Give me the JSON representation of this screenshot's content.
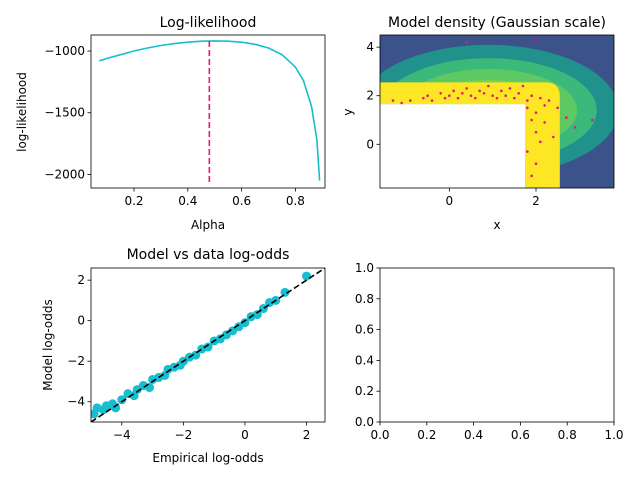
{
  "chart_data": [
    {
      "type": "line",
      "title": "Log-likelihood",
      "xlabel": "Alpha",
      "ylabel": "log-likelihood",
      "xlim": [
        0.04,
        0.91
      ],
      "ylim": [
        -2110,
        -870
      ],
      "xticks": [
        0.2,
        0.4,
        0.6,
        0.8
      ],
      "yticks": [
        -2000,
        -1500,
        -1000
      ],
      "series": [
        {
          "color": "#17becf",
          "points": [
            [
              0.07,
              -1080
            ],
            [
              0.1,
              -1060
            ],
            [
              0.15,
              -1030
            ],
            [
              0.2,
              -1000
            ],
            [
              0.25,
              -975
            ],
            [
              0.3,
              -955
            ],
            [
              0.35,
              -940
            ],
            [
              0.4,
              -928
            ],
            [
              0.45,
              -920
            ],
            [
              0.5,
              -918
            ],
            [
              0.55,
              -920
            ],
            [
              0.6,
              -928
            ],
            [
              0.65,
              -945
            ],
            [
              0.7,
              -975
            ],
            [
              0.75,
              -1030
            ],
            [
              0.8,
              -1130
            ],
            [
              0.83,
              -1240
            ],
            [
              0.86,
              -1450
            ],
            [
              0.88,
              -1720
            ],
            [
              0.89,
              -2050
            ]
          ]
        }
      ],
      "vline": {
        "x": 0.48,
        "color": "#e8157a",
        "style": "dashed"
      }
    },
    {
      "type": "heatmap",
      "title": "Model density (Gaussian scale)",
      "xlabel": "x",
      "ylabel": "y",
      "xlim": [
        -1.6,
        3.8
      ],
      "ylim": [
        -1.8,
        4.5
      ],
      "xticks": [
        0,
        2
      ],
      "yticks": [
        0,
        2,
        4
      ],
      "colormap": [
        "#3b528b",
        "#21918c",
        "#3ab97a",
        "#5ec962",
        "#7ad151",
        "#fde725"
      ],
      "scatter_color": "#e8157a",
      "points": [
        [
          -1.3,
          1.8
        ],
        [
          -1.1,
          1.7
        ],
        [
          -0.9,
          1.8
        ],
        [
          -0.6,
          1.9
        ],
        [
          -0.5,
          2.0
        ],
        [
          -0.4,
          1.8
        ],
        [
          -0.2,
          2.1
        ],
        [
          -0.1,
          1.9
        ],
        [
          0.0,
          2.0
        ],
        [
          0.1,
          2.2
        ],
        [
          0.2,
          1.9
        ],
        [
          0.3,
          2.1
        ],
        [
          0.4,
          2.3
        ],
        [
          0.5,
          2.0
        ],
        [
          0.6,
          1.9
        ],
        [
          0.7,
          2.2
        ],
        [
          0.8,
          2.1
        ],
        [
          0.9,
          2.4
        ],
        [
          1.0,
          2.0
        ],
        [
          1.1,
          1.9
        ],
        [
          1.2,
          2.2
        ],
        [
          1.3,
          2.0
        ],
        [
          1.4,
          2.3
        ],
        [
          1.5,
          1.9
        ],
        [
          1.6,
          2.1
        ],
        [
          1.7,
          2.4
        ],
        [
          1.9,
          2.0
        ],
        [
          2.1,
          1.9
        ],
        [
          2.3,
          1.8
        ],
        [
          2.5,
          1.5
        ],
        [
          2.7,
          1.1
        ],
        [
          2.9,
          0.7
        ],
        [
          1.8,
          1.5
        ],
        [
          1.9,
          1.0
        ],
        [
          2.0,
          0.5
        ],
        [
          2.1,
          0.1
        ],
        [
          1.8,
          -0.3
        ],
        [
          2.0,
          -0.8
        ],
        [
          1.9,
          -1.3
        ],
        [
          2.2,
          0.9
        ],
        [
          2.4,
          0.3
        ],
        [
          1.8,
          1.8
        ],
        [
          2.0,
          1.3
        ],
        [
          2.2,
          1.6
        ],
        [
          0.4,
          4.2
        ],
        [
          2.0,
          4.3
        ],
        [
          3.3,
          1.0
        ]
      ]
    },
    {
      "type": "scatter",
      "title": "Model vs data log-odds",
      "xlabel": "Empirical log-odds",
      "ylabel": "Model log-odds",
      "xlim": [
        -5.0,
        2.6
      ],
      "ylim": [
        -5.0,
        2.6
      ],
      "xticks": [
        -4,
        -2,
        0,
        2
      ],
      "yticks": [
        -4,
        -2,
        0,
        2
      ],
      "color": "#17becf",
      "points": [
        [
          -4.9,
          -4.6
        ],
        [
          -4.8,
          -4.3
        ],
        [
          -4.6,
          -4.4
        ],
        [
          -4.5,
          -4.2
        ],
        [
          -4.3,
          -4.1
        ],
        [
          -4.2,
          -4.3
        ],
        [
          -4.0,
          -3.9
        ],
        [
          -3.8,
          -3.6
        ],
        [
          -3.6,
          -3.7
        ],
        [
          -3.5,
          -3.4
        ],
        [
          -3.3,
          -3.2
        ],
        [
          -3.1,
          -3.3
        ],
        [
          -3.0,
          -2.9
        ],
        [
          -2.8,
          -2.8
        ],
        [
          -2.6,
          -2.7
        ],
        [
          -2.5,
          -2.4
        ],
        [
          -2.3,
          -2.3
        ],
        [
          -2.1,
          -2.2
        ],
        [
          -2.0,
          -2.0
        ],
        [
          -1.8,
          -1.8
        ],
        [
          -1.6,
          -1.7
        ],
        [
          -1.4,
          -1.4
        ],
        [
          -1.2,
          -1.3
        ],
        [
          -1.0,
          -1.0
        ],
        [
          -0.8,
          -0.9
        ],
        [
          -0.6,
          -0.7
        ],
        [
          -0.4,
          -0.5
        ],
        [
          -0.2,
          -0.3
        ],
        [
          0.0,
          -0.1
        ],
        [
          0.2,
          0.2
        ],
        [
          0.4,
          0.3
        ],
        [
          0.6,
          0.6
        ],
        [
          0.8,
          0.9
        ],
        [
          1.0,
          1.0
        ],
        [
          1.3,
          1.4
        ],
        [
          2.0,
          2.2
        ]
      ],
      "reference_line": {
        "x": [
          -5.0,
          2.6
        ],
        "y": [
          -5.0,
          2.6
        ],
        "color": "#000000",
        "style": "dashed"
      }
    },
    {
      "type": "scatter",
      "xlim": [
        0,
        1
      ],
      "ylim": [
        0,
        1
      ],
      "xticks": [
        0.0,
        0.2,
        0.4,
        0.6,
        0.8,
        1.0
      ],
      "yticks": [
        0.0,
        0.2,
        0.4,
        0.6,
        0.8,
        1.0
      ],
      "tick_labels_x": [
        "0.0",
        "0.2",
        "0.4",
        "0.6",
        "0.8",
        "1.0"
      ],
      "tick_labels_y": [
        "0.0",
        "0.2",
        "0.4",
        "0.6",
        "0.8",
        "1.0"
      ],
      "points": []
    }
  ],
  "labels": {
    "tl_ticks_x": [
      "0.2",
      "0.4",
      "0.6",
      "0.8"
    ],
    "tl_ticks_y": [
      "−2000",
      "−1500",
      "−1000"
    ],
    "tr_ticks_x": [
      "0",
      "2"
    ],
    "tr_ticks_y": [
      "0",
      "2",
      "4"
    ],
    "bl_ticks_x": [
      "−4",
      "−2",
      "0",
      "2"
    ],
    "bl_ticks_y": [
      "−4",
      "−2",
      "0",
      "2"
    ]
  }
}
